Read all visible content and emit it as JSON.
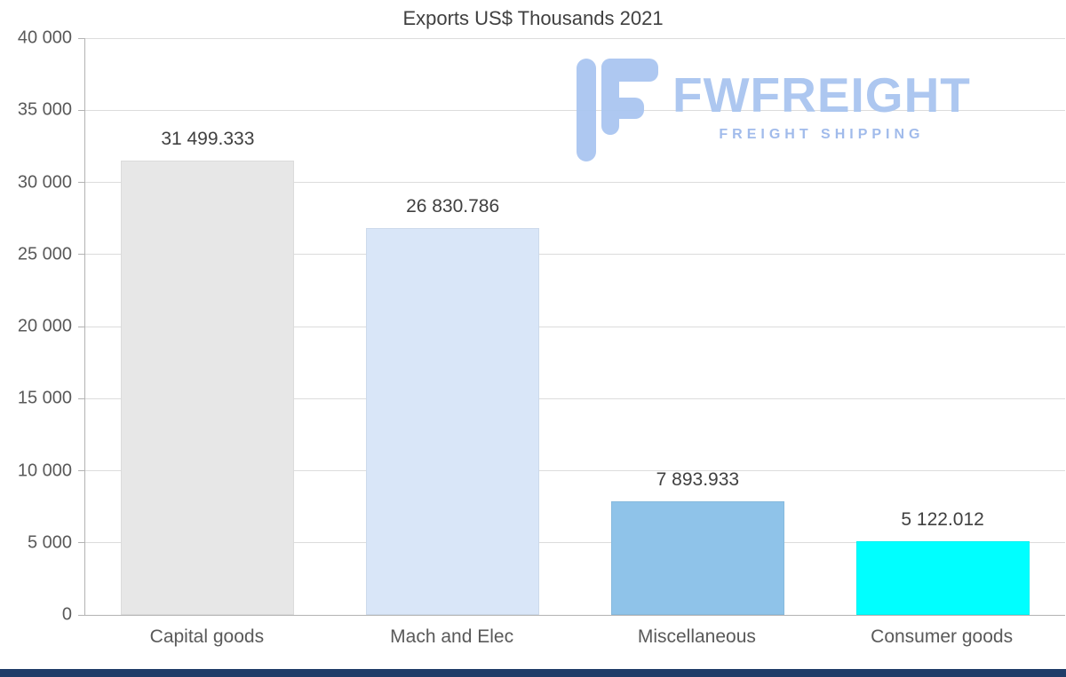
{
  "chart_data": {
    "type": "bar",
    "title": "Exports US$ Thousands 2021",
    "categories": [
      "Capital goods",
      "Mach and Elec",
      "Miscellaneous",
      "Consumer goods"
    ],
    "values": [
      31499.333,
      26830.786,
      7893.933,
      5122.012
    ],
    "value_labels": [
      "31 499.333",
      "26 830.786",
      "7 893.933",
      "5 122.012"
    ],
    "bar_colors": [
      "#e7e7e7",
      "#d9e6f8",
      "#8fc3e9",
      "#00ffff"
    ],
    "ylim": [
      0,
      40000
    ],
    "ytick_values": [
      0,
      5000,
      10000,
      15000,
      20000,
      25000,
      30000,
      35000,
      40000
    ],
    "ytick_labels": [
      "0",
      "5 000",
      "10 000",
      "15 000",
      "20 000",
      "25 000",
      "30 000",
      "35 000",
      "40 000"
    ],
    "xlabel": "",
    "ylabel": "",
    "grid": true,
    "legend": false
  },
  "watermark": {
    "brand": "FWFREIGHT",
    "tagline": "FREIGHT SHIPPING",
    "color": "#a9c5f0"
  },
  "footer": {
    "bar_color": "#1f3c68"
  }
}
